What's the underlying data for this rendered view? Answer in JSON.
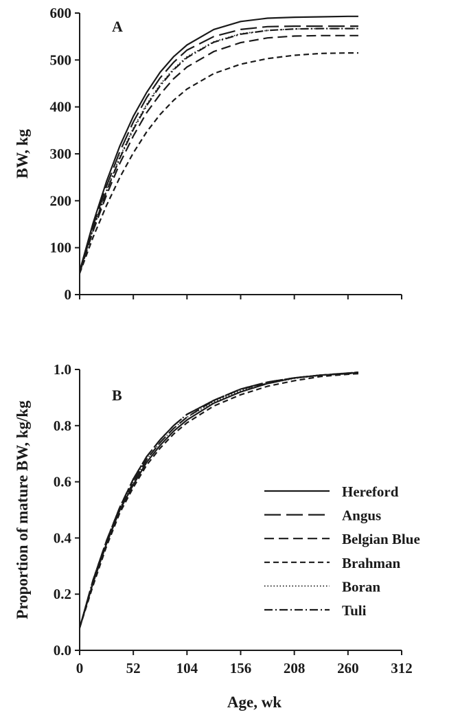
{
  "chart_data": [
    {
      "type": "line",
      "panel_label": "A",
      "ylabel": "BW, kg",
      "xlabel": "",
      "xlim": [
        0,
        312
      ],
      "ylim": [
        0,
        600
      ],
      "xticks": [
        0,
        52,
        104,
        156,
        208,
        260,
        312
      ],
      "yticks": [
        "0",
        "100",
        "200",
        "300",
        "400",
        "500",
        "600"
      ],
      "show_x_tick_labels": false,
      "x": [
        0,
        13,
        26,
        39,
        52,
        65,
        78,
        91,
        104,
        130,
        156,
        182,
        208,
        234,
        260,
        270
      ],
      "series": [
        {
          "name": "Hereford",
          "values": [
            50,
            152,
            241,
            317,
            380,
            431,
            474,
            507,
            532,
            565,
            582,
            589,
            591,
            592,
            593,
            593
          ]
        },
        {
          "name": "Angus",
          "values": [
            48,
            146,
            231,
            305,
            368,
            420,
            462,
            495,
            521,
            550,
            565,
            571,
            572,
            572,
            572,
            572
          ]
        },
        {
          "name": "Belgian Blue",
          "values": [
            47,
            135,
            212,
            280,
            338,
            388,
            427,
            460,
            485,
            518,
            537,
            547,
            551,
            552,
            552,
            552
          ]
        },
        {
          "name": "Brahman",
          "values": [
            45,
            122,
            190,
            250,
            302,
            347,
            384,
            414,
            438,
            471,
            491,
            503,
            510,
            514,
            515,
            515
          ]
        },
        {
          "name": "Boran",
          "values": [
            46,
            140,
            222,
            294,
            355,
            406,
            448,
            481,
            507,
            539,
            556,
            563,
            566,
            567,
            567,
            567
          ]
        },
        {
          "name": "Tuli",
          "values": [
            46,
            139,
            220,
            291,
            352,
            403,
            445,
            479,
            505,
            538,
            555,
            563,
            566,
            567,
            567,
            567
          ]
        }
      ]
    },
    {
      "type": "line",
      "panel_label": "B",
      "ylabel": "Proportion of mature BW, kg/kg",
      "xlabel": "Age, wk",
      "xlim": [
        0,
        312
      ],
      "ylim": [
        0,
        1.0
      ],
      "xticks": [
        0,
        52,
        104,
        156,
        208,
        260,
        312
      ],
      "xtick_labels": [
        "0",
        "52",
        "104",
        "156",
        "208",
        "260",
        "312"
      ],
      "yticks": [
        "0.0",
        "0.2",
        "0.4",
        "0.6",
        "0.8",
        "1.0"
      ],
      "legend_position": "lower-right",
      "x": [
        0,
        13,
        26,
        39,
        52,
        65,
        78,
        91,
        104,
        130,
        156,
        182,
        208,
        234,
        260,
        270
      ],
      "series": [
        {
          "name": "Hereford",
          "values": [
            0.08,
            0.24,
            0.38,
            0.5,
            0.59,
            0.67,
            0.73,
            0.78,
            0.82,
            0.88,
            0.92,
            0.95,
            0.97,
            0.98,
            0.985,
            0.99
          ]
        },
        {
          "name": "Angus",
          "values": [
            0.08,
            0.25,
            0.39,
            0.51,
            0.61,
            0.69,
            0.75,
            0.8,
            0.84,
            0.89,
            0.93,
            0.955,
            0.97,
            0.98,
            0.987,
            0.99
          ]
        },
        {
          "name": "Belgian Blue",
          "values": [
            0.08,
            0.24,
            0.38,
            0.5,
            0.6,
            0.68,
            0.74,
            0.79,
            0.83,
            0.89,
            0.93,
            0.95,
            0.97,
            0.98,
            0.985,
            0.988
          ]
        },
        {
          "name": "Brahman",
          "values": [
            0.08,
            0.23,
            0.37,
            0.49,
            0.58,
            0.66,
            0.72,
            0.77,
            0.81,
            0.87,
            0.91,
            0.94,
            0.96,
            0.975,
            0.983,
            0.985
          ]
        },
        {
          "name": "Boran",
          "values": [
            0.08,
            0.245,
            0.385,
            0.505,
            0.6,
            0.68,
            0.74,
            0.79,
            0.83,
            0.885,
            0.925,
            0.95,
            0.968,
            0.979,
            0.986,
            0.988
          ]
        },
        {
          "name": "Tuli",
          "values": [
            0.08,
            0.25,
            0.39,
            0.51,
            0.61,
            0.69,
            0.75,
            0.8,
            0.84,
            0.89,
            0.93,
            0.955,
            0.97,
            0.98,
            0.987,
            0.99
          ]
        }
      ]
    }
  ],
  "series_styles": [
    {
      "name": "Hereford",
      "dash": "solid",
      "color": "#1a1a1a"
    },
    {
      "name": "Angus",
      "dash": "long-dash",
      "color": "#1a1a1a"
    },
    {
      "name": "Belgian Blue",
      "dash": "dash",
      "color": "#1a1a1a"
    },
    {
      "name": "Brahman",
      "dash": "short-dash",
      "color": "#1a1a1a"
    },
    {
      "name": "Boran",
      "dash": "dotted",
      "color": "#1a1a1a"
    },
    {
      "name": "Tuli",
      "dash": "dash-dot",
      "color": "#1a1a1a"
    }
  ]
}
